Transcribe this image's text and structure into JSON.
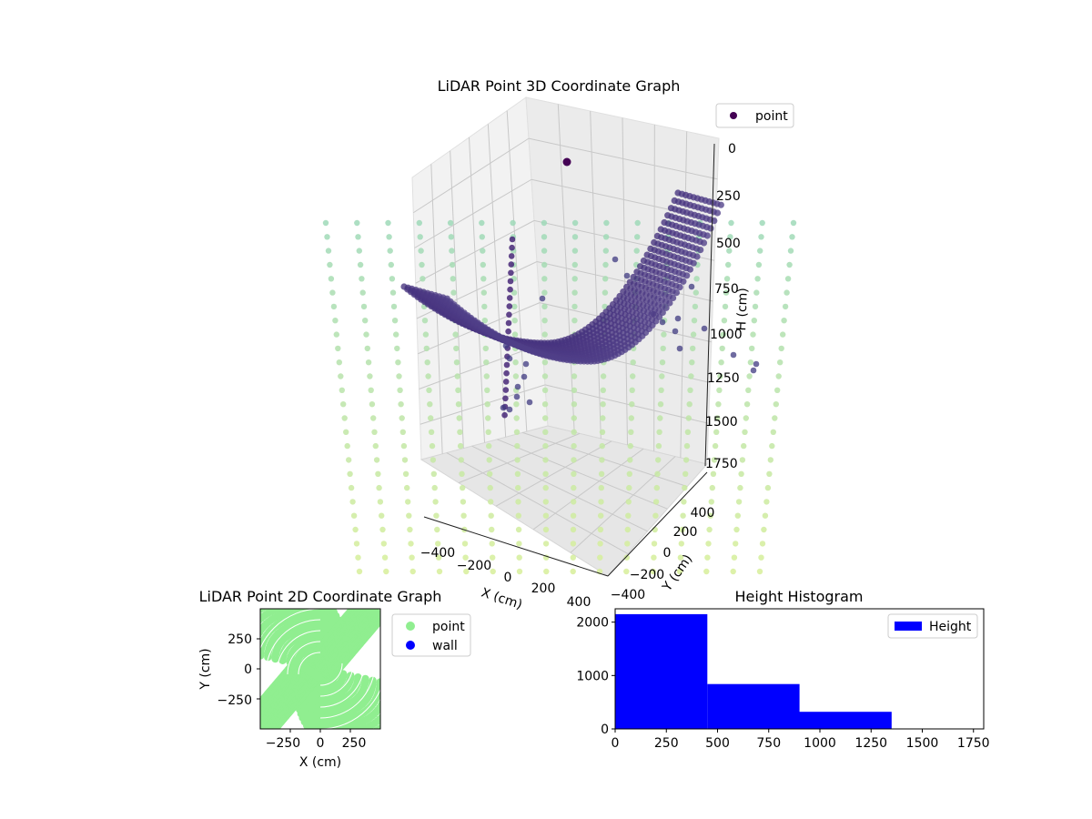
{
  "colors": {
    "surface": "#46337e",
    "surface_light": "#5a4a92",
    "column": "#482878",
    "scatter_dark": "#3f3a80",
    "top_point": "#440154",
    "floor_top": "#9fd9b8",
    "floor_bottom": "#d7ef9a",
    "legend_point": "#440154",
    "point_2d": "#90ee90",
    "wall_2d": "#0000ff",
    "hist_bar": "#0000ff"
  },
  "chart_data": [
    {
      "type": "scatter",
      "title": "LiDAR Point 3D Coordinate Graph",
      "xlabel": "X (cm)",
      "ylabel": "Y (cm)",
      "zlabel": "H (cm)",
      "xlim": [
        -500,
        500
      ],
      "ylim": [
        -500,
        500
      ],
      "zlim": [
        1800,
        0
      ],
      "x_ticks": [
        "−400",
        "−200",
        "0",
        "200",
        "400"
      ],
      "y_ticks": [
        "−400",
        "−200",
        "0",
        "200",
        "400"
      ],
      "z_ticks": [
        "0",
        "250",
        "500",
        "750",
        "1000",
        "1250",
        "1500",
        "1750"
      ],
      "legend": [
        "point"
      ],
      "series": [
        {
          "name": "point",
          "description": "parabolic height surface plus floor points and scattered returns"
        }
      ]
    },
    {
      "type": "scatter",
      "title": "LiDAR Point 2D Coordinate Graph",
      "xlabel": "X (cm)",
      "ylabel": "Y (cm)",
      "xlim": [
        -500,
        500
      ],
      "ylim": [
        -500,
        500
      ],
      "x_ticks": [
        "−250",
        "0",
        "250"
      ],
      "y_ticks": [
        "−250",
        "0",
        "250"
      ],
      "legend": [
        "point",
        "wall"
      ]
    },
    {
      "type": "bar",
      "title": "Height Histogram",
      "xlim": [
        0,
        1800
      ],
      "ylim": [
        0,
        2250
      ],
      "x_ticks": [
        "0",
        "250",
        "500",
        "750",
        "1000",
        "1250",
        "1500",
        "1750"
      ],
      "y_ticks": [
        "0",
        "1000",
        "2000"
      ],
      "legend": [
        "Height"
      ],
      "bins": [
        {
          "from": 0,
          "to": 450,
          "count": 2150
        },
        {
          "from": 450,
          "to": 900,
          "count": 840
        },
        {
          "from": 900,
          "to": 1350,
          "count": 320
        },
        {
          "from": 1350,
          "to": 1800,
          "count": 5
        }
      ]
    }
  ]
}
